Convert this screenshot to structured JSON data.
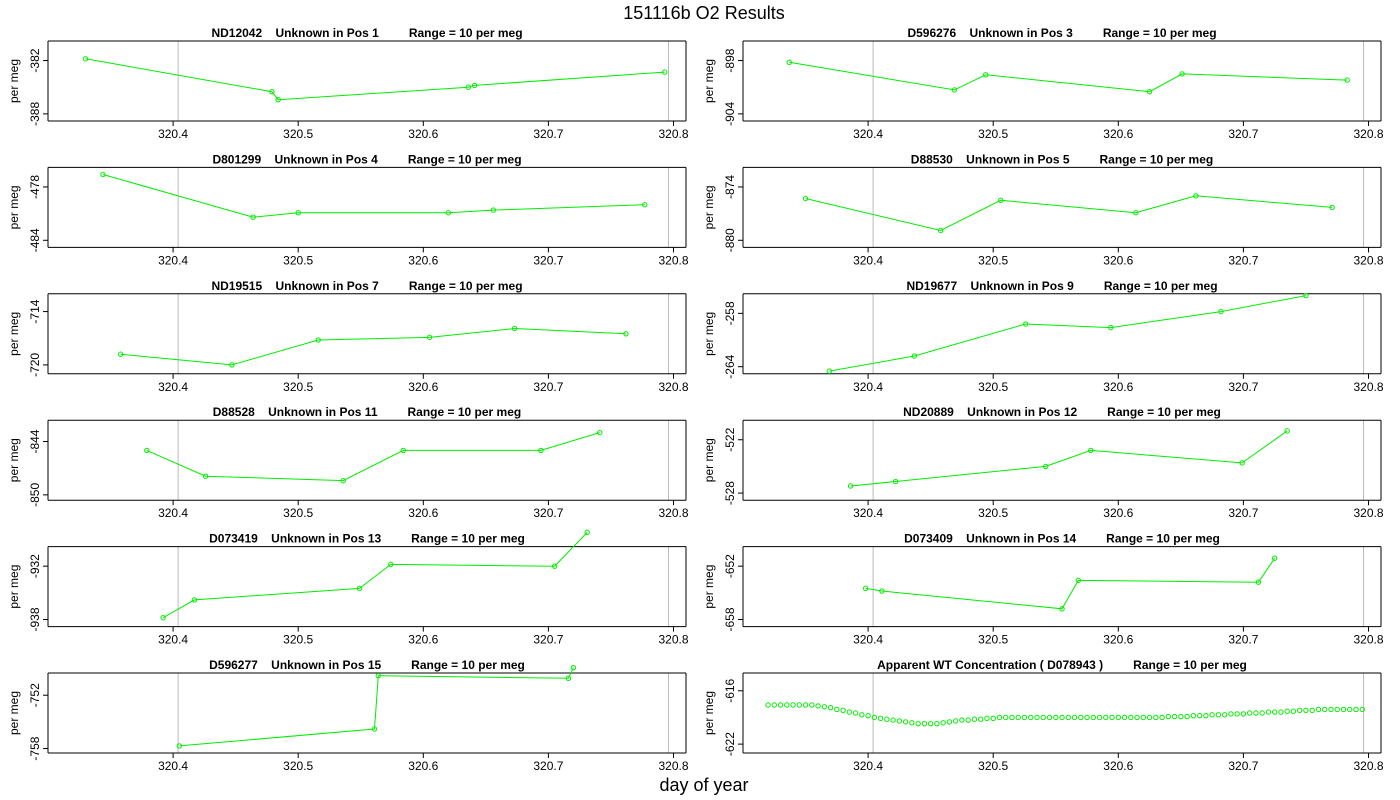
{
  "page": {
    "title": "151116b  O2 Results",
    "xlabel": "day of year"
  },
  "colors": {
    "series": "#00ee00",
    "vline": "#bbbbbb",
    "axis": "#000000",
    "background": "#ffffff"
  },
  "chart_data": [
    {
      "type": "line",
      "title": "ND12042    Unknown in Pos 1         Range = 10 per meg",
      "ylabel": "per meg",
      "xlim": [
        320.3,
        320.81
      ],
      "ylim": [
        -388.8,
        -379.8
      ],
      "yticks": [
        -382,
        -388
      ],
      "xticks": [
        320.4,
        320.5,
        320.6,
        320.7,
        320.8
      ],
      "vlines": [
        320.404,
        320.796
      ],
      "connected": true,
      "x": [
        320.33,
        320.479,
        320.484,
        320.636,
        320.641,
        320.793
      ],
      "y": [
        -381.8,
        -385.5,
        -386.4,
        -385.0,
        -384.8,
        -383.3
      ]
    },
    {
      "type": "line",
      "title": "D596276    Unknown in Pos 3         Range = 10 per meg",
      "ylabel": "per meg",
      "xlim": [
        320.3,
        320.81
      ],
      "ylim": [
        -904.8,
        -895.8
      ],
      "yticks": [
        -898,
        -904
      ],
      "xticks": [
        320.4,
        320.5,
        320.6,
        320.7,
        320.8
      ],
      "vlines": [
        320.404,
        320.796
      ],
      "connected": true,
      "x": [
        320.337,
        320.469,
        320.494,
        320.625,
        320.651,
        320.783
      ],
      "y": [
        -898.2,
        -901.3,
        -899.6,
        -901.5,
        -899.5,
        -900.2
      ]
    },
    {
      "type": "line",
      "title": "D801299    Unknown in Pos 4         Range = 10 per meg",
      "ylabel": "per meg",
      "xlim": [
        320.3,
        320.81
      ],
      "ylim": [
        -484.8,
        -475.8
      ],
      "yticks": [
        -478,
        -484
      ],
      "xticks": [
        320.4,
        320.5,
        320.6,
        320.7,
        320.8
      ],
      "vlines": [
        320.404,
        320.796
      ],
      "connected": true,
      "x": [
        320.344,
        320.464,
        320.5,
        320.62,
        320.656,
        320.777
      ],
      "y": [
        -476.6,
        -481.4,
        -480.9,
        -480.9,
        -480.6,
        -480.0
      ]
    },
    {
      "type": "line",
      "title": "D88530    Unknown in Pos 5         Range = 10 per meg",
      "ylabel": "per meg",
      "xlim": [
        320.3,
        320.81
      ],
      "ylim": [
        -880.8,
        -871.8
      ],
      "yticks": [
        -874,
        -880
      ],
      "xticks": [
        320.4,
        320.5,
        320.6,
        320.7,
        320.8
      ],
      "vlines": [
        320.404,
        320.796
      ],
      "connected": true,
      "x": [
        320.35,
        320.458,
        320.506,
        320.614,
        320.662,
        320.771
      ],
      "y": [
        -875.3,
        -878.9,
        -875.5,
        -876.9,
        -875.0,
        -876.3
      ]
    },
    {
      "type": "line",
      "title": "ND19515    Unknown in Pos 7         Range = 10 per meg",
      "ylabel": "per meg",
      "xlim": [
        320.3,
        320.81
      ],
      "ylim": [
        -721.0,
        -712.0
      ],
      "yticks": [
        -714,
        -720
      ],
      "xticks": [
        320.4,
        320.5,
        320.6,
        320.7,
        320.8
      ],
      "vlines": [
        320.404,
        320.796
      ],
      "connected": true,
      "x": [
        320.358,
        320.447,
        320.516,
        320.605,
        320.673,
        320.762
      ],
      "y": [
        -718.8,
        -720.0,
        -717.2,
        -716.9,
        -715.9,
        -716.5
      ]
    },
    {
      "type": "line",
      "title": "ND19677    Unknown in Pos 9         Range = 10 per meg",
      "ylabel": "per meg",
      "xlim": [
        320.3,
        320.81
      ],
      "ylim": [
        -264.8,
        -255.8
      ],
      "yticks": [
        -258,
        -264
      ],
      "xticks": [
        320.4,
        320.5,
        320.6,
        320.7,
        320.8
      ],
      "vlines": [
        320.404,
        320.796
      ],
      "connected": true,
      "x": [
        320.369,
        320.437,
        320.526,
        320.594,
        320.682,
        320.75
      ],
      "y": [
        -264.5,
        -262.8,
        -259.2,
        -259.6,
        -257.8,
        -256.0
      ]
    },
    {
      "type": "line",
      "title": "D88528    Unknown in Pos 11         Range = 10 per meg",
      "ylabel": "per meg",
      "xlim": [
        320.3,
        320.81
      ],
      "ylim": [
        -850.6,
        -841.6
      ],
      "yticks": [
        -844,
        -850
      ],
      "xticks": [
        320.4,
        320.5,
        320.6,
        320.7,
        320.8
      ],
      "vlines": [
        320.404,
        320.796
      ],
      "connected": true,
      "x": [
        320.379,
        320.426,
        320.536,
        320.584,
        320.694,
        320.741
      ],
      "y": [
        -845.0,
        -847.9,
        -848.4,
        -845.0,
        -845.0,
        -843.0
      ]
    },
    {
      "type": "line",
      "title": "ND20889    Unknown in Pos 12         Range = 10 per meg",
      "ylabel": "per meg",
      "xlim": [
        320.3,
        320.81
      ],
      "ylim": [
        -528.8,
        -519.8
      ],
      "yticks": [
        -522,
        -528
      ],
      "xticks": [
        320.4,
        320.5,
        320.6,
        320.7,
        320.8
      ],
      "vlines": [
        320.404,
        320.796
      ],
      "connected": true,
      "x": [
        320.386,
        320.422,
        320.542,
        320.578,
        320.699,
        320.735
      ],
      "y": [
        -527.2,
        -526.7,
        -525.0,
        -523.2,
        -524.6,
        -521.0
      ]
    },
    {
      "type": "line",
      "title": "D073419    Unknown in Pos 13         Range = 10 per meg",
      "ylabel": "per meg",
      "xlim": [
        320.3,
        320.81
      ],
      "ylim": [
        -938.8,
        -929.8
      ],
      "yticks": [
        -932,
        -938
      ],
      "xticks": [
        320.4,
        320.5,
        320.6,
        320.7,
        320.8
      ],
      "vlines": [
        320.404,
        320.796
      ],
      "connected": true,
      "x": [
        320.392,
        320.417,
        320.549,
        320.574,
        320.705,
        320.731
      ],
      "y": [
        -937.8,
        -935.8,
        -934.5,
        -931.8,
        -932.0,
        -928.2
      ]
    },
    {
      "type": "line",
      "title": "D073409    Unknown in Pos 14         Range = 10 per meg",
      "ylabel": "per meg",
      "xlim": [
        320.3,
        320.81
      ],
      "ylim": [
        -658.8,
        -649.8
      ],
      "yticks": [
        -652,
        -658
      ],
      "xticks": [
        320.4,
        320.5,
        320.6,
        320.7,
        320.8
      ],
      "vlines": [
        320.404,
        320.796
      ],
      "connected": true,
      "x": [
        320.398,
        320.411,
        320.555,
        320.568,
        320.712,
        320.725
      ],
      "y": [
        -654.5,
        -654.8,
        -656.8,
        -653.6,
        -653.8,
        -651.1
      ]
    },
    {
      "type": "line",
      "title": "D596277    Unknown in Pos 15         Range = 10 per meg",
      "ylabel": "per meg",
      "xlim": [
        320.3,
        320.81
      ],
      "ylim": [
        -758.5,
        -749.5
      ],
      "yticks": [
        -752,
        -758
      ],
      "xticks": [
        320.4,
        320.5,
        320.6,
        320.7,
        320.8
      ],
      "vlines": [
        320.404,
        320.796
      ],
      "connected": true,
      "x": [
        320.405,
        320.561,
        320.564,
        320.716,
        320.72
      ],
      "y": [
        -757.7,
        -755.8,
        -749.8,
        -750.1,
        -748.9
      ]
    },
    {
      "type": "scatter",
      "title": "Apparent WT Concentration ( D078943 )         Range = 10 per meg",
      "ylabel": "per meg",
      "xlim": [
        320.3,
        320.81
      ],
      "ylim": [
        -623.0,
        -614.0
      ],
      "yticks": [
        -616,
        -622
      ],
      "xticks": [
        320.4,
        320.5,
        320.6,
        320.7,
        320.8
      ],
      "vlines": [
        320.404,
        320.796
      ],
      "connected": false,
      "x": [
        320.32,
        320.325,
        320.33,
        320.335,
        320.34,
        320.345,
        320.35,
        320.355,
        320.36,
        320.365,
        320.37,
        320.375,
        320.38,
        320.385,
        320.39,
        320.395,
        320.4,
        320.405,
        320.41,
        320.415,
        320.42,
        320.425,
        320.43,
        320.435,
        320.44,
        320.445,
        320.45,
        320.455,
        320.46,
        320.465,
        320.47,
        320.475,
        320.48,
        320.485,
        320.49,
        320.495,
        320.5,
        320.505,
        320.51,
        320.515,
        320.52,
        320.525,
        320.53,
        320.535,
        320.54,
        320.545,
        320.55,
        320.555,
        320.56,
        320.565,
        320.57,
        320.575,
        320.58,
        320.585,
        320.59,
        320.595,
        320.6,
        320.605,
        320.61,
        320.615,
        320.62,
        320.625,
        320.63,
        320.635,
        320.64,
        320.645,
        320.65,
        320.655,
        320.66,
        320.665,
        320.67,
        320.675,
        320.68,
        320.685,
        320.69,
        320.695,
        320.7,
        320.705,
        320.71,
        320.715,
        320.72,
        320.725,
        320.73,
        320.735,
        320.74,
        320.745,
        320.75,
        320.755,
        320.76,
        320.765,
        320.77,
        320.775,
        320.78,
        320.785,
        320.79,
        320.795
      ],
      "y": [
        -617.6,
        -617.6,
        -617.6,
        -617.6,
        -617.6,
        -617.6,
        -617.6,
        -617.6,
        -617.7,
        -617.8,
        -617.9,
        -618.1,
        -618.2,
        -618.4,
        -618.5,
        -618.7,
        -618.8,
        -619.0,
        -619.1,
        -619.2,
        -619.3,
        -619.4,
        -619.5,
        -619.6,
        -619.7,
        -619.7,
        -619.7,
        -619.7,
        -619.6,
        -619.5,
        -619.4,
        -619.3,
        -619.3,
        -619.2,
        -619.2,
        -619.1,
        -619.1,
        -619.0,
        -619.0,
        -619.0,
        -619.0,
        -619.0,
        -619.0,
        -619.0,
        -619.0,
        -619.0,
        -619.0,
        -619.0,
        -619.0,
        -619.0,
        -619.0,
        -619.0,
        -619.0,
        -619.0,
        -619.0,
        -619.0,
        -619.0,
        -619.0,
        -619.0,
        -619.0,
        -619.0,
        -619.0,
        -619.0,
        -619.0,
        -618.9,
        -618.9,
        -618.9,
        -618.9,
        -618.8,
        -618.8,
        -618.8,
        -618.7,
        -618.7,
        -618.7,
        -618.6,
        -618.6,
        -618.6,
        -618.5,
        -618.5,
        -618.5,
        -618.4,
        -618.4,
        -618.4,
        -618.3,
        -618.3,
        -618.2,
        -618.2,
        -618.2,
        -618.1,
        -618.1,
        -618.1,
        -618.1,
        -618.1,
        -618.1,
        -618.1,
        -618.1
      ]
    }
  ]
}
